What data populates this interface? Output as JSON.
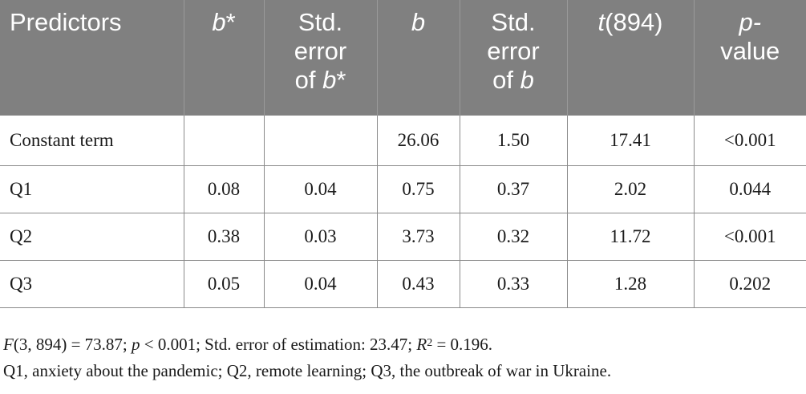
{
  "header": {
    "predictors": "Predictors",
    "bstar_b": "b",
    "bstar_star": "*",
    "se_bstar_l1": "Std.",
    "se_bstar_l2": "error",
    "se_bstar_l3_pre": "of ",
    "se_bstar_l3_b": "b",
    "se_bstar_l3_star": "*",
    "b": "b",
    "se_b_l1": "Std.",
    "se_b_l2": "error",
    "se_b_l3_pre": "of ",
    "se_b_l3_b": "b",
    "t_t": "t",
    "t_df": "(894)",
    "p_l1": "p-",
    "p_l2": "value"
  },
  "rows": [
    {
      "predictor": "Constant term",
      "bstar": "",
      "se_bstar": "",
      "b": "26.06",
      "se_b": "1.50",
      "t": "17.41",
      "p": "<0.001"
    },
    {
      "predictor": "Q1",
      "bstar": "0.08",
      "se_bstar": "0.04",
      "b": "0.75",
      "se_b": "0.37",
      "t": "2.02",
      "p": "0.044"
    },
    {
      "predictor": "Q2",
      "bstar": "0.38",
      "se_bstar": "0.03",
      "b": "3.73",
      "se_b": "0.32",
      "t": "11.72",
      "p": "<0.001"
    },
    {
      "predictor": "Q3",
      "bstar": "0.05",
      "se_bstar": "0.04",
      "b": "0.43",
      "se_b": "0.33",
      "t": "1.28",
      "p": "0.202"
    }
  ],
  "notes": {
    "line1": {
      "f_label": "F",
      "f_args": "(3, 894) = 73.87; ",
      "p_label": "p",
      "p_rest": " < 0.001; Std. error of estimation: 23.47; ",
      "r_label": "R",
      "r_sup": "2",
      "r_rest": " = 0.196."
    },
    "line2": "Q1, anxiety about the pandemic; Q2, remote learning; Q3, the outbreak of war in Ukraine."
  }
}
